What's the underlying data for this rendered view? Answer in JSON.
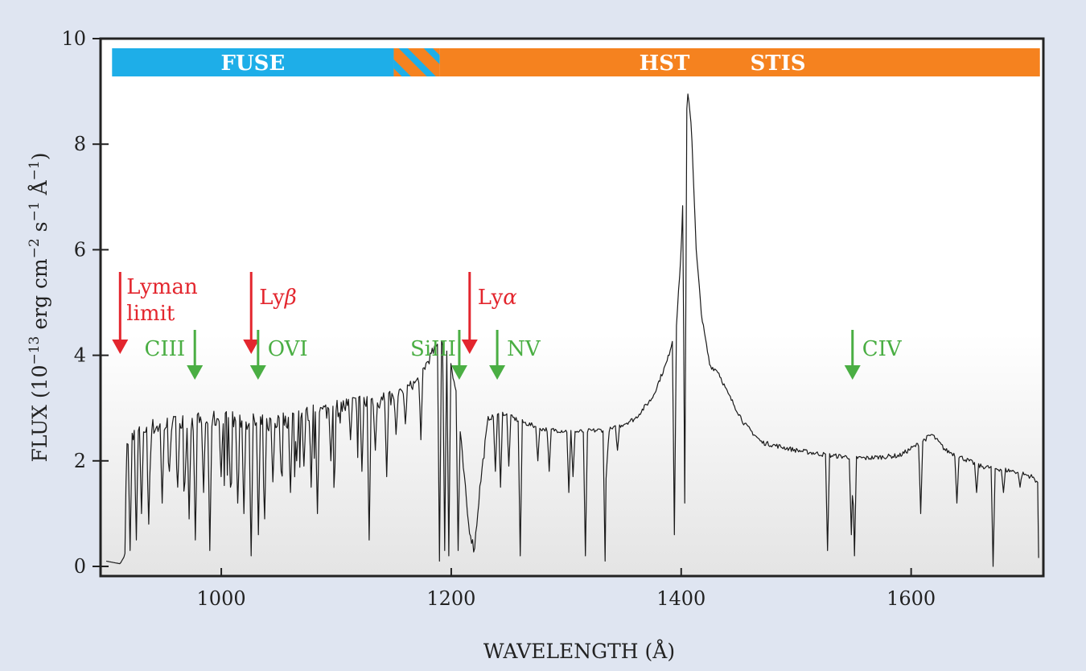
{
  "chart_data": {
    "type": "line",
    "xlabel": "WAVELENGTH (Å)",
    "ylabel_parts": [
      "FLUX (10",
      "−13",
      " erg cm",
      "−2",
      " s",
      "−1",
      " Å",
      "−1",
      ")"
    ],
    "xlim": [
      895,
      1715
    ],
    "ylim": [
      0,
      10
    ],
    "xticks": [
      1000,
      1200,
      1400,
      1600
    ],
    "yticks": [
      0,
      2,
      4,
      6,
      8,
      10
    ],
    "instrument_bands": [
      {
        "label": "FUSE",
        "x_start": 905,
        "x_end": 1150,
        "color": "#1eaee8"
      },
      {
        "label": "",
        "x_start": 1150,
        "x_end": 1190,
        "color": "#f5821f",
        "hatched": true
      },
      {
        "label": "HST",
        "x_start": 1190,
        "x_end": 1712,
        "color": "#f5821f"
      },
      {
        "label": "STIS",
        "x_start": 1190,
        "x_end": 1712,
        "color": "#f5821f"
      }
    ],
    "annotations_red": [
      {
        "lines": [
          "Lyman",
          "limit"
        ],
        "x": 912
      },
      {
        "lines": [
          "Lyβ"
        ],
        "x": 1026
      },
      {
        "lines": [
          "Lyα"
        ],
        "x": 1216
      }
    ],
    "annotations_green": [
      {
        "label": "CIII",
        "x": 977
      },
      {
        "label": "OVI",
        "x": 1032
      },
      {
        "label": "SiIII",
        "x": 1207
      },
      {
        "label": "NV",
        "x": 1240
      },
      {
        "label": "CIV",
        "x": 1549
      }
    ],
    "series": [
      {
        "color": "#1a1a1a",
        "continuum": [
          [
            900,
            0.1
          ],
          [
            912,
            0.05
          ],
          [
            916,
            0.2
          ],
          [
            918,
            2.4
          ],
          [
            930,
            2.6
          ],
          [
            960,
            2.7
          ],
          [
            1000,
            2.8
          ],
          [
            1040,
            2.7
          ],
          [
            1080,
            2.9
          ],
          [
            1120,
            3.1
          ],
          [
            1150,
            3.2
          ],
          [
            1170,
            3.5
          ],
          [
            1185,
            4.1
          ],
          [
            1192,
            4.3
          ],
          [
            1198,
            4.1
          ],
          [
            1205,
            3.2
          ],
          [
            1210,
            2.0
          ],
          [
            1215,
            0.8
          ],
          [
            1220,
            0.3
          ],
          [
            1225,
            1.5
          ],
          [
            1232,
            2.8
          ],
          [
            1245,
            2.9
          ],
          [
            1260,
            2.75
          ],
          [
            1280,
            2.6
          ],
          [
            1310,
            2.55
          ],
          [
            1340,
            2.6
          ],
          [
            1360,
            2.8
          ],
          [
            1375,
            3.2
          ],
          [
            1388,
            3.9
          ],
          [
            1396,
            4.6
          ],
          [
            1400,
            6.0
          ],
          [
            1403,
            8.0
          ],
          [
            1406,
            9.0
          ],
          [
            1409,
            8.3
          ],
          [
            1413,
            6.0
          ],
          [
            1418,
            4.7
          ],
          [
            1425,
            3.8
          ],
          [
            1432,
            3.7
          ],
          [
            1440,
            3.3
          ],
          [
            1455,
            2.7
          ],
          [
            1470,
            2.35
          ],
          [
            1500,
            2.2
          ],
          [
            1530,
            2.1
          ],
          [
            1560,
            2.05
          ],
          [
            1590,
            2.1
          ],
          [
            1605,
            2.3
          ],
          [
            1618,
            2.5
          ],
          [
            1630,
            2.2
          ],
          [
            1660,
            1.9
          ],
          [
            1690,
            1.8
          ],
          [
            1705,
            1.7
          ],
          [
            1710,
            1.6
          ],
          [
            1711,
            0.0
          ]
        ],
        "absorption_lines": [
          [
            921,
            0.3
          ],
          [
            926,
            0.5
          ],
          [
            931,
            1.0
          ],
          [
            937,
            0.8
          ],
          [
            949,
            1.2
          ],
          [
            955,
            1.8
          ],
          [
            962,
            1.5
          ],
          [
            968,
            1.6
          ],
          [
            972,
            0.9
          ],
          [
            977,
            0.5
          ],
          [
            985,
            1.4
          ],
          [
            990,
            0.3
          ],
          [
            1000,
            1.7
          ],
          [
            1008,
            1.5
          ],
          [
            1014,
            1.2
          ],
          [
            1020,
            1.0
          ],
          [
            1026,
            0.2
          ],
          [
            1032,
            0.6
          ],
          [
            1038,
            0.9
          ],
          [
            1045,
            1.6
          ],
          [
            1052,
            1.8
          ],
          [
            1060,
            1.4
          ],
          [
            1066,
            2.0
          ],
          [
            1072,
            1.9
          ],
          [
            1078,
            1.5
          ],
          [
            1084,
            1.0
          ],
          [
            1095,
            2.0
          ],
          [
            1112,
            2.4
          ],
          [
            1122,
            1.8
          ],
          [
            1129,
            0.5
          ],
          [
            1134,
            2.2
          ],
          [
            1144,
            1.7
          ],
          [
            1152,
            2.5
          ],
          [
            1160,
            2.7
          ],
          [
            1174,
            2.4
          ],
          [
            1190,
            0.1
          ],
          [
            1194,
            0.3
          ],
          [
            1198,
            0.2
          ],
          [
            1206,
            0.3
          ],
          [
            1238,
            1.8
          ],
          [
            1243,
            1.5
          ],
          [
            1250,
            1.9
          ],
          [
            1260,
            0.2
          ],
          [
            1275,
            2.0
          ],
          [
            1285,
            1.8
          ],
          [
            1302,
            1.4
          ],
          [
            1306,
            1.7
          ],
          [
            1317,
            0.2
          ],
          [
            1334,
            0.1
          ],
          [
            1336,
            2.0
          ],
          [
            1345,
            2.2
          ],
          [
            1394,
            0.6
          ],
          [
            1403,
            1.2
          ],
          [
            1527,
            0.3
          ],
          [
            1548,
            0.6
          ],
          [
            1551,
            0.2
          ],
          [
            1608,
            1.0
          ],
          [
            1640,
            1.2
          ],
          [
            1657,
            1.4
          ],
          [
            1671,
            0.0
          ],
          [
            1680,
            1.4
          ],
          [
            1695,
            1.5
          ]
        ]
      }
    ]
  }
}
